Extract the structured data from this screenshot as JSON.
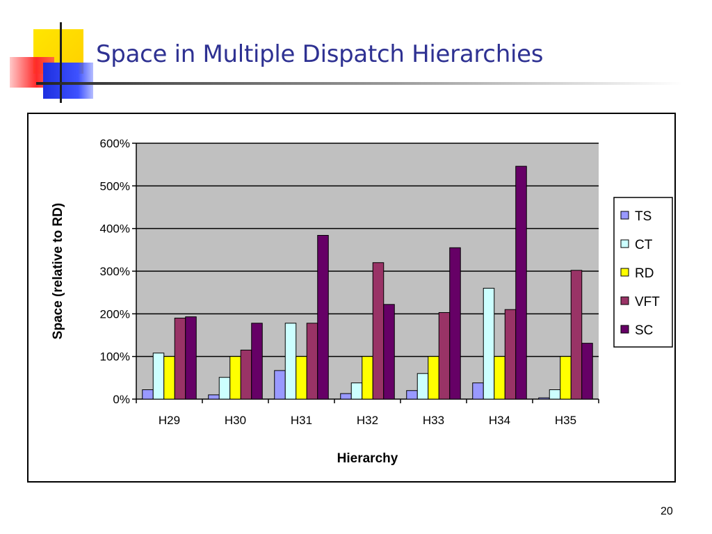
{
  "slide": {
    "title": "Space in Multiple Dispatch Hierarchies",
    "page_number": "20"
  },
  "chart_data": {
    "type": "bar",
    "categories": [
      "H29",
      "H30",
      "H31",
      "H32",
      "H33",
      "H34",
      "H35"
    ],
    "series": [
      {
        "name": "TS",
        "color": "#9999ff",
        "values": [
          22,
          10,
          67,
          13,
          20,
          38,
          3
        ]
      },
      {
        "name": "CT",
        "color": "#ccffff",
        "values": [
          108,
          51,
          178,
          38,
          60,
          260,
          22
        ]
      },
      {
        "name": "RD",
        "color": "#ffff00",
        "values": [
          100,
          100,
          100,
          100,
          100,
          100,
          100
        ]
      },
      {
        "name": "VFT",
        "color": "#993366",
        "values": [
          190,
          115,
          178,
          320,
          203,
          210,
          302
        ]
      },
      {
        "name": "SC",
        "color": "#660066",
        "values": [
          193,
          178,
          384,
          222,
          355,
          546,
          131
        ]
      }
    ],
    "xlabel": "Hierarchy",
    "ylabel": "Space (relative to RD)",
    "ylim": [
      0,
      600
    ],
    "yticks": [
      "0%",
      "100%",
      "200%",
      "300%",
      "400%",
      "500%",
      "600%"
    ],
    "grid": true,
    "plot_background": "#c0c0c0",
    "legend_position": "right"
  }
}
